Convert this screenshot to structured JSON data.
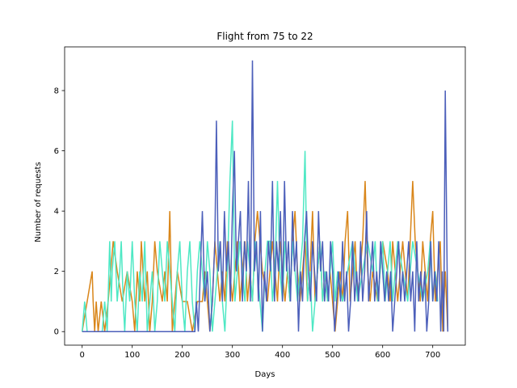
{
  "chart_data": {
    "type": "line",
    "title": "Flight from 75 to 22",
    "xlabel": "Days",
    "ylabel": "Number of requests",
    "xlim": [
      -35,
      765
    ],
    "ylim": [
      -0.45,
      9.45
    ],
    "xticks": [
      0,
      100,
      200,
      300,
      400,
      500,
      600,
      700
    ],
    "yticks": [
      0,
      2,
      4,
      6,
      8
    ],
    "grid": false,
    "legend": "none",
    "colors": [
      "#d9861a",
      "#4ee8c4",
      "#4c5fba"
    ],
    "series": [
      {
        "x": [
          0,
          20,
          22,
          25,
          28,
          32,
          38,
          45,
          52,
          62,
          70,
          80,
          90,
          100,
          105,
          110,
          115,
          118,
          125,
          130,
          135,
          140,
          145,
          150,
          160,
          165,
          170,
          175,
          180,
          185,
          190,
          200,
          210,
          220,
          230,
          240,
          245,
          250,
          255,
          260,
          265,
          270,
          275,
          280,
          285,
          290,
          295,
          300,
          305,
          310,
          315,
          320,
          325,
          330,
          335,
          340,
          345,
          350,
          360,
          370,
          380,
          385,
          390,
          395,
          400,
          405,
          410,
          415,
          420,
          425,
          430,
          435,
          440,
          445,
          450,
          455,
          460,
          465,
          470,
          475,
          480,
          485,
          490,
          495,
          500,
          505,
          510,
          515,
          520,
          525,
          530,
          535,
          540,
          545,
          550,
          555,
          560,
          565,
          570,
          575,
          580,
          590,
          600,
          610,
          615,
          620,
          625,
          630,
          635,
          640,
          645,
          650,
          655,
          660,
          665,
          670,
          675,
          680,
          685,
          690,
          695,
          700,
          705,
          710,
          715,
          720,
          725,
          730
        ],
        "values": [
          0,
          2,
          1,
          0,
          1,
          0,
          1,
          0,
          1,
          3,
          2,
          1,
          2,
          1,
          0,
          2,
          1,
          3,
          1,
          2,
          0,
          1,
          3,
          2,
          1,
          2,
          1,
          4,
          0,
          1,
          2,
          1,
          1,
          0,
          1,
          1,
          2,
          1,
          0,
          1,
          3,
          2,
          1,
          2,
          1,
          3,
          2,
          1,
          2,
          3,
          1,
          2,
          3,
          1,
          2,
          1,
          3,
          4,
          2,
          1,
          3,
          2,
          1,
          3,
          2,
          1,
          2,
          1,
          3,
          4,
          2,
          1,
          2,
          3,
          1,
          2,
          4,
          1,
          2,
          3,
          1,
          2,
          1,
          2,
          1,
          0,
          1,
          2,
          1,
          3,
          4,
          1,
          2,
          3,
          1,
          2,
          3,
          5,
          2,
          1,
          2,
          1,
          3,
          2,
          1,
          3,
          2,
          1,
          2,
          3,
          2,
          1,
          3,
          5,
          3,
          2,
          1,
          3,
          2,
          1,
          3,
          4,
          1,
          2,
          3,
          0,
          2,
          0
        ]
      },
      {
        "x": [
          0,
          5,
          10,
          40,
          45,
          50,
          55,
          58,
          60,
          65,
          70,
          75,
          78,
          82,
          85,
          90,
          95,
          100,
          105,
          110,
          115,
          120,
          125,
          130,
          135,
          140,
          145,
          150,
          155,
          160,
          165,
          170,
          175,
          180,
          185,
          190,
          195,
          200,
          205,
          210,
          215,
          220,
          225,
          230,
          235,
          240,
          245,
          250,
          255,
          260,
          265,
          270,
          275,
          280,
          285,
          290,
          295,
          300,
          305,
          310,
          315,
          320,
          325,
          330,
          335,
          340,
          345,
          350,
          355,
          360,
          365,
          370,
          375,
          380,
          385,
          390,
          395,
          400,
          405,
          410,
          415,
          420,
          425,
          430,
          435,
          440,
          445,
          450,
          455,
          460,
          465,
          470,
          475,
          480,
          485,
          490,
          495,
          500,
          505,
          510,
          520,
          530,
          540,
          550,
          560,
          570,
          580,
          585,
          590,
          595,
          600,
          605,
          610,
          615,
          620,
          625,
          630,
          640,
          650,
          660,
          670,
          680,
          690,
          695,
          700,
          705,
          710
        ],
        "values": [
          0,
          1,
          0,
          0,
          1,
          0,
          3,
          1,
          2,
          3,
          1,
          2,
          3,
          1,
          0,
          2,
          1,
          3,
          1,
          0,
          2,
          1,
          3,
          0,
          1,
          2,
          0,
          1,
          3,
          2,
          1,
          3,
          2,
          1,
          0,
          2,
          3,
          1,
          0,
          2,
          3,
          1,
          0,
          2,
          3,
          2,
          1,
          3,
          2,
          0,
          1,
          2,
          3,
          1,
          0,
          2,
          5,
          7,
          1,
          2,
          3,
          2,
          1,
          3,
          2,
          1,
          3,
          2,
          1,
          0,
          2,
          3,
          3,
          1,
          2,
          5,
          2,
          1,
          3,
          2,
          1,
          3,
          2,
          1,
          2,
          3,
          6,
          1,
          2,
          0,
          1,
          2,
          3,
          1,
          2,
          1,
          2,
          3,
          1,
          2,
          1,
          2,
          3,
          1,
          2,
          3,
          2,
          3,
          1,
          2,
          3,
          1,
          2,
          3,
          1,
          2,
          3,
          2,
          1,
          3,
          2,
          1,
          2,
          3,
          1,
          2,
          1
        ]
      },
      {
        "x": [
          0,
          100,
          200,
          225,
          228,
          232,
          236,
          240,
          245,
          250,
          255,
          260,
          265,
          268,
          272,
          276,
          280,
          284,
          288,
          292,
          296,
          300,
          304,
          308,
          312,
          316,
          320,
          324,
          328,
          332,
          336,
          340,
          344,
          348,
          352,
          356,
          360,
          364,
          368,
          372,
          376,
          380,
          384,
          388,
          392,
          396,
          400,
          404,
          408,
          412,
          416,
          420,
          424,
          428,
          432,
          436,
          440,
          444,
          448,
          452,
          456,
          460,
          464,
          468,
          472,
          476,
          480,
          484,
          488,
          492,
          496,
          500,
          504,
          508,
          512,
          516,
          520,
          524,
          528,
          532,
          536,
          540,
          544,
          548,
          552,
          556,
          560,
          564,
          568,
          572,
          576,
          580,
          584,
          588,
          592,
          596,
          600,
          604,
          608,
          612,
          616,
          620,
          624,
          628,
          632,
          636,
          640,
          644,
          648,
          652,
          656,
          660,
          664,
          668,
          672,
          676,
          680,
          684,
          688,
          692,
          696,
          700,
          704,
          708,
          712,
          716,
          719,
          722,
          725,
          730
        ],
        "values": [
          0,
          0,
          0,
          0,
          1,
          0,
          2,
          4,
          1,
          2,
          0,
          1,
          3,
          7,
          2,
          3,
          1,
          4,
          2,
          3,
          1,
          4,
          6,
          2,
          3,
          4,
          1,
          3,
          2,
          5,
          1,
          9,
          2,
          3,
          1,
          4,
          0,
          2,
          1,
          3,
          2,
          5,
          1,
          3,
          2,
          4,
          1,
          5,
          2,
          3,
          1,
          4,
          2,
          3,
          0,
          2,
          1,
          3,
          4,
          2,
          1,
          3,
          2,
          1,
          4,
          2,
          3,
          1,
          2,
          1,
          3,
          2,
          0,
          1,
          2,
          1,
          3,
          1,
          2,
          0,
          1,
          3,
          1,
          2,
          1,
          3,
          1,
          2,
          4,
          1,
          2,
          3,
          1,
          2,
          1,
          3,
          2,
          1,
          2,
          1,
          2,
          0,
          1,
          2,
          3,
          1,
          2,
          1,
          2,
          3,
          1,
          2,
          0,
          3,
          1,
          2,
          1,
          2,
          0,
          1,
          3,
          1,
          2,
          1,
          3,
          0,
          2,
          0,
          8,
          0
        ]
      }
    ]
  }
}
